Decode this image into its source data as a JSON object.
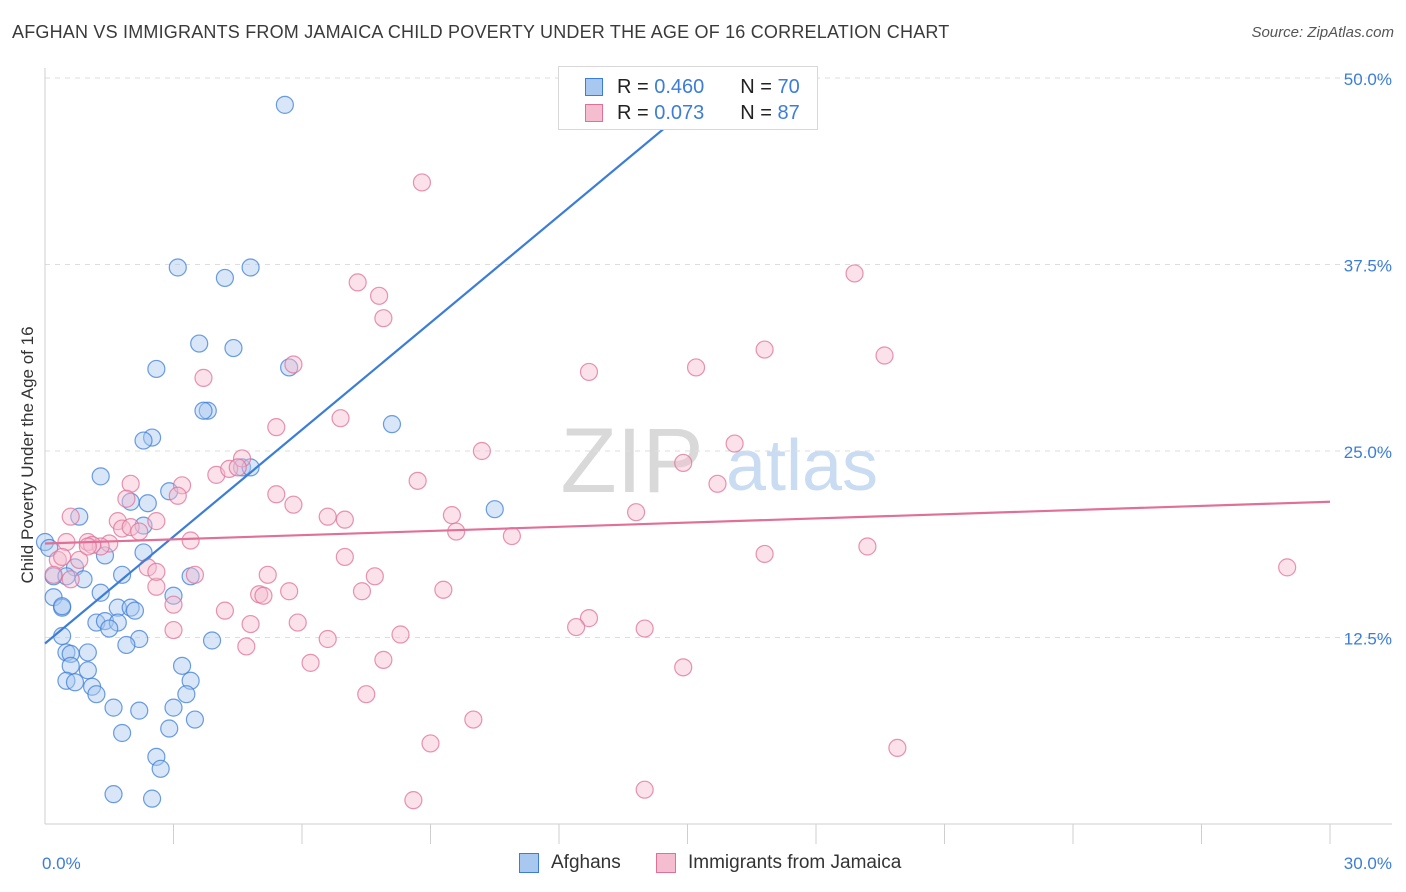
{
  "title": "AFGHAN VS IMMIGRANTS FROM JAMAICA CHILD POVERTY UNDER THE AGE OF 16 CORRELATION CHART",
  "source": "Source: ZipAtlas.com",
  "watermark": {
    "zip": "ZIP",
    "atlas": "atlas"
  },
  "legend": {
    "r_label": "R =",
    "n_label": "N =",
    "rows": [
      {
        "name": "Afghans",
        "r": "0.460",
        "n": "70",
        "color": "#3b7dd8",
        "fill": "#a9c8f0"
      },
      {
        "name": "Immigrants from Jamaica",
        "r": "0.073",
        "n": "87",
        "color": "#e07097",
        "fill": "#f5bdd0"
      }
    ]
  },
  "chart_data": {
    "type": "scatter",
    "title": "AFGHAN VS IMMIGRANTS FROM JAMAICA CHILD POVERTY UNDER THE AGE OF 16 CORRELATION CHART",
    "xlabel": "",
    "ylabel": "Child Poverty Under the Age of 16",
    "xlim": [
      0,
      30
    ],
    "ylim": [
      0,
      50
    ],
    "x_tick_labels": [
      "0.0%",
      "30.0%"
    ],
    "y_ticks": [
      12.5,
      25.0,
      37.5,
      50.0
    ],
    "y_tick_labels": [
      "12.5%",
      "25.0%",
      "37.5%",
      "50.0%"
    ],
    "grid": true,
    "series": [
      {
        "name": "Afghans",
        "color": "#3b7dd8",
        "fill": "#a9c8f0",
        "trend": {
          "x1": 0,
          "y1": 12.1,
          "x2": 15.2,
          "y2": 48.4
        },
        "points": [
          [
            5.6,
            48.2
          ],
          [
            3.1,
            37.3
          ],
          [
            4.2,
            36.6
          ],
          [
            4.8,
            37.3
          ],
          [
            3.6,
            32.2
          ],
          [
            4.4,
            31.9
          ],
          [
            2.6,
            30.5
          ],
          [
            5.7,
            30.6
          ],
          [
            3.8,
            27.7
          ],
          [
            3.7,
            27.7
          ],
          [
            8.1,
            26.8
          ],
          [
            2.5,
            25.9
          ],
          [
            2.3,
            25.7
          ],
          [
            4.6,
            23.9
          ],
          [
            1.3,
            23.3
          ],
          [
            2.9,
            22.3
          ],
          [
            2.0,
            21.6
          ],
          [
            2.4,
            21.5
          ],
          [
            10.5,
            21.1
          ],
          [
            0.8,
            20.6
          ],
          [
            2.3,
            20.0
          ],
          [
            0.0,
            18.9
          ],
          [
            0.1,
            18.5
          ],
          [
            1.4,
            18.0
          ],
          [
            2.3,
            18.2
          ],
          [
            0.7,
            17.2
          ],
          [
            0.2,
            16.6
          ],
          [
            0.5,
            16.6
          ],
          [
            0.9,
            16.4
          ],
          [
            1.8,
            16.7
          ],
          [
            3.4,
            16.6
          ],
          [
            0.2,
            15.2
          ],
          [
            1.3,
            15.5
          ],
          [
            3.0,
            15.3
          ],
          [
            0.4,
            14.5
          ],
          [
            1.7,
            14.5
          ],
          [
            2.0,
            14.5
          ],
          [
            2.1,
            14.3
          ],
          [
            1.2,
            13.5
          ],
          [
            1.4,
            13.6
          ],
          [
            1.7,
            13.5
          ],
          [
            1.5,
            13.1
          ],
          [
            0.4,
            12.6
          ],
          [
            2.2,
            12.4
          ],
          [
            3.9,
            12.3
          ],
          [
            1.9,
            12.0
          ],
          [
            0.5,
            11.5
          ],
          [
            0.6,
            11.4
          ],
          [
            1.0,
            11.5
          ],
          [
            0.6,
            10.6
          ],
          [
            1.0,
            10.3
          ],
          [
            3.2,
            10.6
          ],
          [
            0.5,
            9.6
          ],
          [
            0.7,
            9.5
          ],
          [
            3.4,
            9.6
          ],
          [
            1.1,
            9.2
          ],
          [
            1.2,
            8.7
          ],
          [
            3.3,
            8.7
          ],
          [
            1.6,
            7.8
          ],
          [
            2.2,
            7.6
          ],
          [
            3.0,
            7.8
          ],
          [
            3.5,
            7.0
          ],
          [
            2.9,
            6.4
          ],
          [
            1.8,
            6.1
          ],
          [
            2.6,
            4.5
          ],
          [
            2.7,
            3.7
          ],
          [
            1.6,
            2.0
          ],
          [
            2.5,
            1.7
          ],
          [
            0.4,
            14.6
          ],
          [
            4.8,
            23.9
          ]
        ]
      },
      {
        "name": "Immigrants from Jamaica",
        "color": "#e07097",
        "fill": "#f5bdd0",
        "trend": {
          "x1": 0,
          "y1": 18.8,
          "x2": 30,
          "y2": 21.6
        },
        "points": [
          [
            8.8,
            43.0
          ],
          [
            18.9,
            36.9
          ],
          [
            7.3,
            36.3
          ],
          [
            7.8,
            35.4
          ],
          [
            7.9,
            33.9
          ],
          [
            16.8,
            31.8
          ],
          [
            19.6,
            31.4
          ],
          [
            5.8,
            30.8
          ],
          [
            15.2,
            30.6
          ],
          [
            12.7,
            30.3
          ],
          [
            3.7,
            29.9
          ],
          [
            6.9,
            27.2
          ],
          [
            5.4,
            26.6
          ],
          [
            16.1,
            25.5
          ],
          [
            10.2,
            25.0
          ],
          [
            4.6,
            24.5
          ],
          [
            14.9,
            24.2
          ],
          [
            4.0,
            23.4
          ],
          [
            4.3,
            23.8
          ],
          [
            4.5,
            23.9
          ],
          [
            8.7,
            23.0
          ],
          [
            2.0,
            22.8
          ],
          [
            3.2,
            22.7
          ],
          [
            15.7,
            22.8
          ],
          [
            5.4,
            22.1
          ],
          [
            3.1,
            22.0
          ],
          [
            5.8,
            21.4
          ],
          [
            13.8,
            20.9
          ],
          [
            9.5,
            20.7
          ],
          [
            6.6,
            20.6
          ],
          [
            7.0,
            20.4
          ],
          [
            2.6,
            20.3
          ],
          [
            1.7,
            20.3
          ],
          [
            0.6,
            20.6
          ],
          [
            1.8,
            19.8
          ],
          [
            2.0,
            19.9
          ],
          [
            2.2,
            19.6
          ],
          [
            9.6,
            19.6
          ],
          [
            10.9,
            19.3
          ],
          [
            3.4,
            19.0
          ],
          [
            0.5,
            18.9
          ],
          [
            1.0,
            18.9
          ],
          [
            1.5,
            18.8
          ],
          [
            1.3,
            18.6
          ],
          [
            1.1,
            18.7
          ],
          [
            19.2,
            18.6
          ],
          [
            16.8,
            18.1
          ],
          [
            0.8,
            17.7
          ],
          [
            0.3,
            17.7
          ],
          [
            2.4,
            17.2
          ],
          [
            7.0,
            17.9
          ],
          [
            0.2,
            16.7
          ],
          [
            0.6,
            16.4
          ],
          [
            3.5,
            16.7
          ],
          [
            5.2,
            16.7
          ],
          [
            7.7,
            16.6
          ],
          [
            2.6,
            15.9
          ],
          [
            5.7,
            15.6
          ],
          [
            7.4,
            15.6
          ],
          [
            9.3,
            15.7
          ],
          [
            5.0,
            15.4
          ],
          [
            5.1,
            15.3
          ],
          [
            3.0,
            14.7
          ],
          [
            4.2,
            14.3
          ],
          [
            12.7,
            13.8
          ],
          [
            5.9,
            13.5
          ],
          [
            4.8,
            13.4
          ],
          [
            3.0,
            13.0
          ],
          [
            12.4,
            13.2
          ],
          [
            14.0,
            13.1
          ],
          [
            8.3,
            12.7
          ],
          [
            6.6,
            12.4
          ],
          [
            4.7,
            11.9
          ],
          [
            7.9,
            11.0
          ],
          [
            6.2,
            10.8
          ],
          [
            14.9,
            10.5
          ],
          [
            7.5,
            8.7
          ],
          [
            10.0,
            7.0
          ],
          [
            9.0,
            5.4
          ],
          [
            19.9,
            5.1
          ],
          [
            14.0,
            2.3
          ],
          [
            8.6,
            1.6
          ],
          [
            29.0,
            17.2
          ],
          [
            0.4,
            17.9
          ],
          [
            1.9,
            21.8
          ],
          [
            2.6,
            16.9
          ],
          [
            1.0,
            18.6
          ]
        ]
      }
    ]
  }
}
